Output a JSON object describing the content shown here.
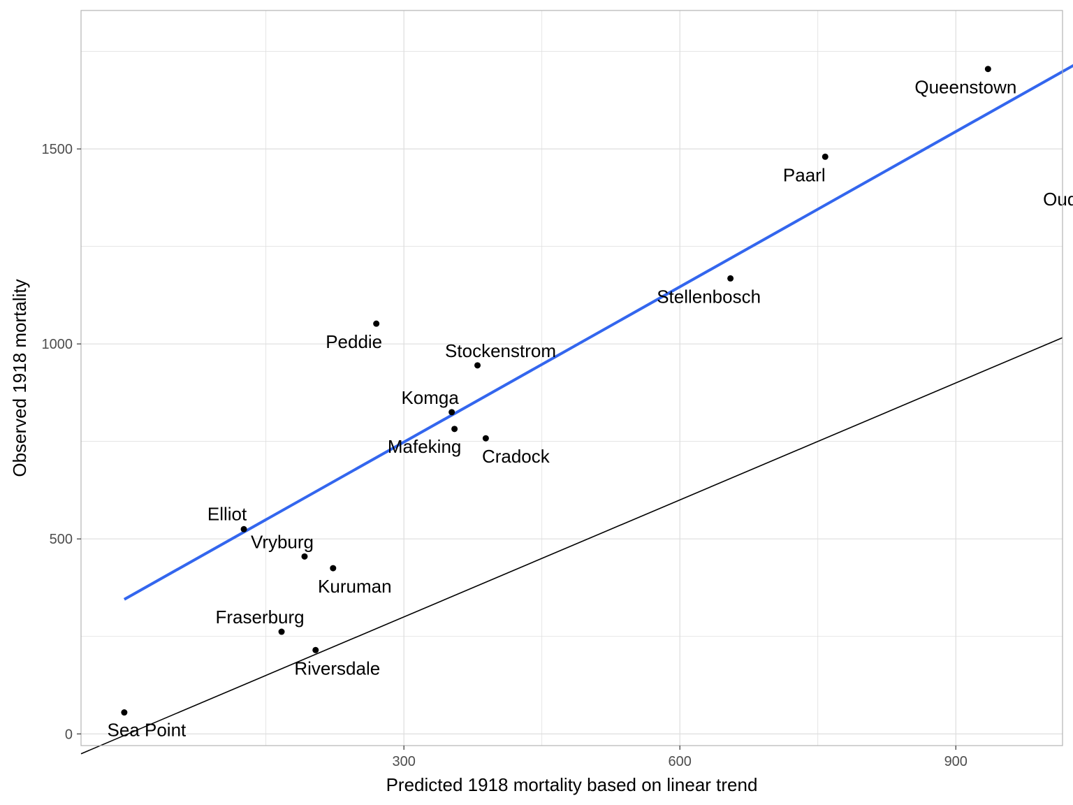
{
  "chart_data": {
    "type": "scatter",
    "title": "",
    "xlabel": "Predicted 1918 mortality based on linear trend",
    "ylabel": "Observed 1918 mortality",
    "xlim": [
      -51,
      1016
    ],
    "ylim": [
      -30,
      1855
    ],
    "x_ticks": [
      300,
      600,
      900
    ],
    "y_ticks": [
      0,
      500,
      1000,
      1500
    ],
    "grid": true,
    "legend": "none",
    "points": [
      {
        "name": "Sea Point",
        "x": -4,
        "y": 55
      },
      {
        "name": "Riversdale",
        "x": 204,
        "y": 215
      },
      {
        "name": "Fraserburg",
        "x": 167,
        "y": 262
      },
      {
        "name": "Kuruman",
        "x": 223,
        "y": 425
      },
      {
        "name": "Vryburg",
        "x": 192,
        "y": 455
      },
      {
        "name": "Elliot",
        "x": 126,
        "y": 525
      },
      {
        "name": "Cradock",
        "x": 389,
        "y": 758
      },
      {
        "name": "Mafeking",
        "x": 355,
        "y": 782
      },
      {
        "name": "Komga",
        "x": 352,
        "y": 825
      },
      {
        "name": "Stockenstrom",
        "x": 380,
        "y": 945
      },
      {
        "name": "Peddie",
        "x": 270,
        "y": 1052
      },
      {
        "name": "Stellenbosch",
        "x": 655,
        "y": 1168
      },
      {
        "name": "Paarl",
        "x": 758,
        "y": 1480
      },
      {
        "name": "Oudtshoorn",
        "x": 1070,
        "y": 1418
      },
      {
        "name": "Queenstown",
        "x": 935,
        "y": 1705
      }
    ],
    "fit_line": {
      "x": [
        -4,
        1070
      ],
      "y": [
        345,
        1770
      ],
      "color": "#3366ee"
    },
    "identity_line": {
      "slope": 1,
      "intercept": 0,
      "color": "#000000"
    },
    "colors": {
      "point": "#000000",
      "grid": "#dedede",
      "panel_border": "#b3b3b3",
      "tick_text": "#4d4d4d"
    }
  }
}
